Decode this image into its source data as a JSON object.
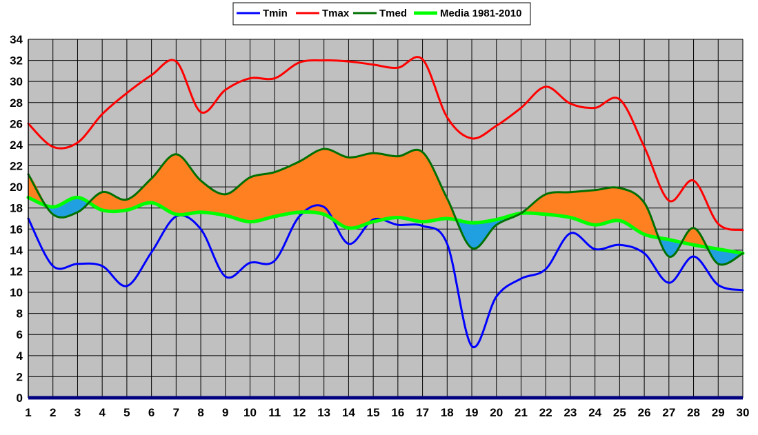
{
  "chart_data": {
    "type": "line",
    "title": "",
    "xlabel": "",
    "ylabel": "",
    "x": [
      1,
      2,
      3,
      4,
      5,
      6,
      7,
      8,
      9,
      10,
      11,
      12,
      13,
      14,
      15,
      16,
      17,
      18,
      19,
      20,
      21,
      22,
      23,
      24,
      25,
      26,
      27,
      28,
      29,
      30
    ],
    "ylim": [
      0,
      34
    ],
    "yticks": [
      0,
      2,
      4,
      6,
      8,
      10,
      12,
      14,
      16,
      18,
      20,
      22,
      24,
      26,
      28,
      30,
      32,
      34
    ],
    "grid": true,
    "legend_position": "top-center",
    "series": [
      {
        "name": "Tmin",
        "color": "#0000ff",
        "values": [
          17.0,
          12.5,
          12.7,
          12.5,
          10.6,
          13.8,
          17.2,
          16.0,
          11.5,
          12.8,
          13.0,
          17.2,
          18.1,
          14.6,
          16.9,
          16.4,
          16.3,
          14.6,
          4.9,
          9.6,
          11.3,
          12.2,
          15.6,
          14.1,
          14.5,
          13.7,
          10.9,
          13.4,
          10.7,
          10.2
        ]
      },
      {
        "name": "Tmax",
        "color": "#ff0000",
        "values": [
          26.0,
          23.8,
          24.2,
          26.9,
          28.9,
          30.6,
          31.9,
          27.1,
          29.2,
          30.3,
          30.3,
          31.8,
          32.0,
          31.9,
          31.6,
          31.3,
          32.1,
          26.6,
          24.6,
          25.8,
          27.5,
          29.5,
          27.9,
          27.5,
          28.3,
          23.8,
          18.7,
          20.6,
          16.5,
          15.9
        ]
      },
      {
        "name": "Tmed",
        "color": "#007000",
        "values": [
          21.2,
          17.4,
          17.6,
          19.5,
          18.8,
          20.8,
          23.1,
          20.6,
          19.3,
          20.9,
          21.4,
          22.4,
          23.6,
          22.8,
          23.2,
          22.9,
          23.3,
          18.9,
          14.2,
          16.4,
          17.5,
          19.3,
          19.5,
          19.7,
          19.9,
          18.5,
          13.4,
          16.1,
          12.7,
          13.7
        ]
      },
      {
        "name": "Media 1981-2010",
        "color": "#00ff00",
        "values": [
          19.0,
          18.1,
          19.0,
          17.8,
          17.8,
          18.5,
          17.4,
          17.6,
          17.3,
          16.7,
          17.2,
          17.6,
          17.4,
          16.1,
          16.7,
          17.1,
          16.7,
          17.0,
          16.6,
          16.9,
          17.5,
          17.4,
          17.1,
          16.4,
          16.8,
          15.5,
          15.0,
          14.5,
          14.1,
          13.7
        ]
      }
    ],
    "fills": {
      "above_normal": "#ff8020",
      "below_normal": "#20a0e0"
    },
    "plot_background": "#c0c0c0",
    "axis_color": "#000080"
  }
}
